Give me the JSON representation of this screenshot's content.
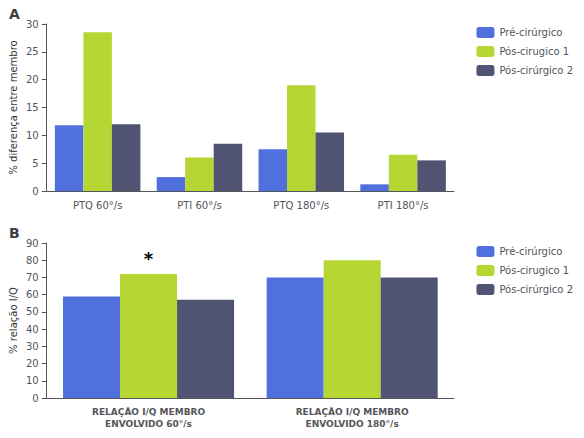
{
  "chart_data": [
    {
      "type": "bar",
      "title": "A",
      "categories": [
        "PTQ 60°/s",
        "PTI 60°/s",
        "PTQ 180°/s",
        "PTI 180°/s"
      ],
      "series": [
        {
          "name": "Pré-cirúrgico",
          "values": [
            11.8,
            2.5,
            7.5,
            1.2
          ]
        },
        {
          "name": "Pós-cirugico 1",
          "values": [
            28.5,
            6.0,
            19.0,
            6.5
          ]
        },
        {
          "name": "Pós-cirúrgico 2",
          "values": [
            12.0,
            8.5,
            10.5,
            5.5
          ]
        }
      ],
      "ylabel": "% diferença entre membro",
      "ylim": [
        0,
        30
      ],
      "yticks": [
        0,
        5,
        10,
        15,
        20,
        25,
        30
      ],
      "grid": false,
      "legend": "right"
    },
    {
      "type": "bar",
      "title": "B",
      "categories": [
        "RELAÇÃO I/Q MEMBRO\nENVOLVIDO 60°/s",
        "RELAÇÃO I/Q MEMBRO\nENVOLVIDO 180°/s"
      ],
      "series": [
        {
          "name": "Pré-cirúrgico",
          "values": [
            59,
            70
          ]
        },
        {
          "name": "Pós-cirugico 1",
          "values": [
            72,
            80
          ]
        },
        {
          "name": "Pós-cirúrgico 2",
          "values": [
            57,
            70
          ]
        }
      ],
      "ylabel": "% relação I/Q",
      "ylim": [
        0,
        90
      ],
      "yticks": [
        0,
        10,
        20,
        30,
        40,
        50,
        60,
        70,
        80,
        90
      ],
      "annotations": [
        {
          "text": "*",
          "x": "RELAÇÃO I/Q MEMBRO\nENVOLVIDO 60°/s",
          "series": "Pós-cirugico 1",
          "y": 73
        }
      ],
      "grid": false,
      "legend": "right"
    }
  ]
}
